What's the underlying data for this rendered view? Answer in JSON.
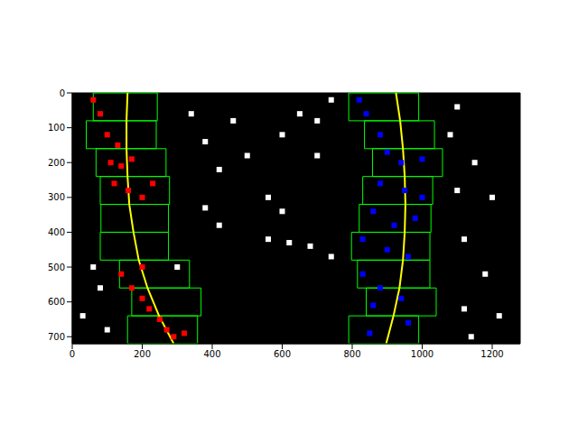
{
  "chart_data": {
    "type": "image",
    "color": "#000000",
    "xlim": [
      0,
      1280
    ],
    "ylim": [
      720,
      0
    ],
    "xticks": [
      0,
      200,
      400,
      600,
      800,
      1000,
      1200
    ],
    "yticks": [
      0,
      100,
      200,
      300,
      400,
      500,
      600,
      700
    ],
    "series": [
      {
        "type": "scatter",
        "color": "#ffffff",
        "marker": "square",
        "x": [
          340,
          380,
          420,
          460,
          500,
          600,
          650,
          700,
          560,
          600,
          620,
          560,
          680,
          740,
          420,
          380,
          1080,
          1150,
          1200,
          1100,
          1120,
          1180,
          1220,
          1120,
          60,
          80,
          30,
          100,
          700,
          740,
          1100,
          300,
          1140
        ],
        "y": [
          60,
          140,
          220,
          80,
          180,
          120,
          60,
          180,
          300,
          340,
          430,
          420,
          440,
          470,
          380,
          330,
          120,
          200,
          300,
          280,
          420,
          520,
          640,
          620,
          500,
          560,
          640,
          680,
          80,
          20,
          40,
          500,
          700
        ]
      },
      {
        "type": "scatter",
        "color": "#ff0000",
        "marker": "square",
        "x": [
          60,
          80,
          100,
          130,
          110,
          140,
          170,
          120,
          160,
          200,
          230,
          140,
          170,
          200,
          220,
          250,
          270,
          290,
          320,
          200
        ],
        "y": [
          20,
          60,
          120,
          150,
          200,
          210,
          190,
          260,
          280,
          300,
          260,
          520,
          560,
          590,
          620,
          650,
          680,
          700,
          690,
          500
        ]
      },
      {
        "type": "scatter",
        "color": "#0000ff",
        "marker": "square",
        "x": [
          820,
          840,
          880,
          900,
          940,
          1000,
          880,
          950,
          1000,
          860,
          920,
          980,
          830,
          900,
          960,
          830,
          880,
          940,
          860,
          960,
          850
        ],
        "y": [
          20,
          60,
          120,
          170,
          200,
          190,
          260,
          280,
          300,
          340,
          380,
          360,
          420,
          450,
          470,
          520,
          560,
          590,
          610,
          660,
          690
        ]
      },
      {
        "type": "rect",
        "color": "#00ff00",
        "rects": [
          [
            60,
            243,
            0,
            80
          ],
          [
            40,
            240,
            80,
            160
          ],
          [
            68,
            268,
            160,
            240
          ],
          [
            80,
            278,
            240,
            320
          ],
          [
            82,
            275,
            320,
            400
          ],
          [
            80,
            275,
            400,
            480
          ],
          [
            135,
            335,
            480,
            560
          ],
          [
            170,
            368,
            560,
            640
          ],
          [
            158,
            358,
            640,
            720
          ],
          [
            790,
            990,
            0,
            80
          ],
          [
            835,
            1035,
            80,
            160
          ],
          [
            858,
            1058,
            160,
            240
          ],
          [
            830,
            1030,
            240,
            320
          ],
          [
            820,
            1025,
            320,
            400
          ],
          [
            798,
            1022,
            400,
            480
          ],
          [
            815,
            1022,
            480,
            560
          ],
          [
            840,
            1040,
            560,
            640
          ],
          [
            790,
            990,
            640,
            720
          ]
        ]
      },
      {
        "type": "line",
        "color": "#ffff00",
        "x": [
          158,
          155,
          155,
          158,
          163,
          175,
          190,
          215,
          248,
          290
        ],
        "y": [
          0,
          80,
          160,
          240,
          320,
          400,
          480,
          560,
          640,
          720
        ]
      },
      {
        "type": "line",
        "color": "#ffff00",
        "x": [
          925,
          937,
          945,
          950,
          952,
          950,
          945,
          935,
          918,
          897
        ],
        "y": [
          0,
          80,
          160,
          240,
          320,
          400,
          480,
          560,
          640,
          720
        ]
      }
    ]
  }
}
